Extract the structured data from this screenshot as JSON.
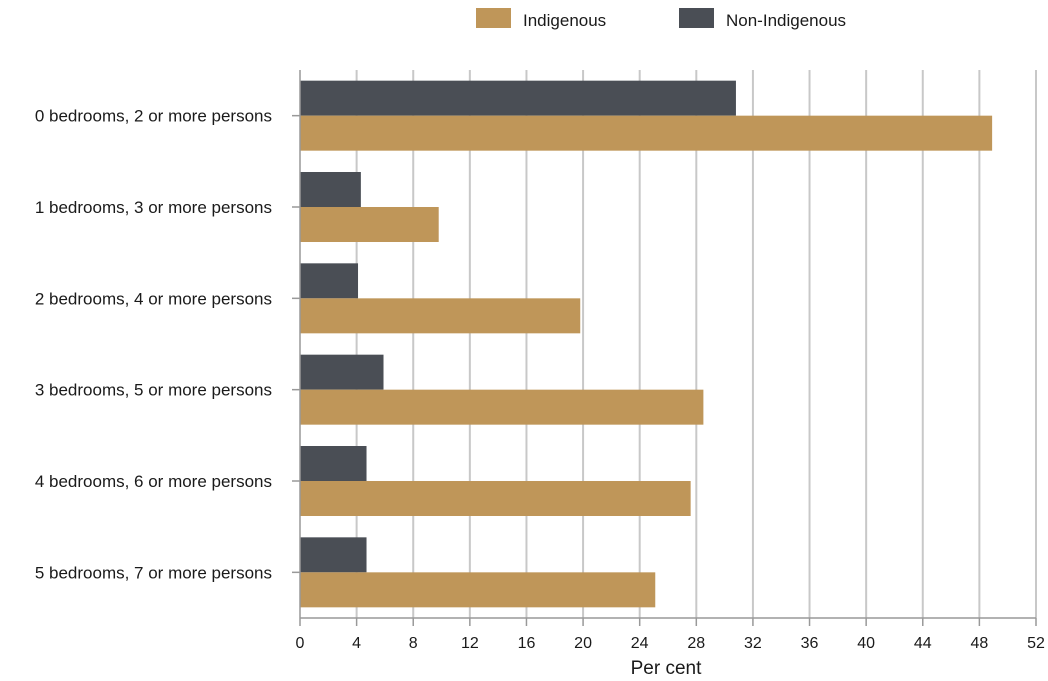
{
  "chart_data": {
    "type": "bar",
    "orientation": "horizontal",
    "categories": [
      "0 bedrooms, 2 or more persons",
      "1 bedrooms, 3 or more persons",
      "2 bedrooms, 4 or more persons",
      "3 bedrooms, 5 or more persons",
      "4 bedrooms, 6 or more persons",
      "5 bedrooms, 7 or more persons"
    ],
    "series": [
      {
        "name": "Indigenous",
        "color": "#bf9659",
        "values": [
          48.9,
          9.8,
          19.8,
          28.5,
          27.6,
          25.1
        ]
      },
      {
        "name": "Non-Indigenous",
        "color": "#4a4e55",
        "values": [
          30.8,
          4.3,
          4.1,
          5.9,
          4.7,
          4.7
        ]
      }
    ],
    "xlabel": "Per cent",
    "ylabel": "",
    "xlim": [
      0,
      52
    ],
    "xticks": [
      0,
      4,
      8,
      12,
      16,
      20,
      24,
      28,
      32,
      36,
      40,
      44,
      48,
      52
    ],
    "grid": "vertical",
    "legend": "top"
  }
}
